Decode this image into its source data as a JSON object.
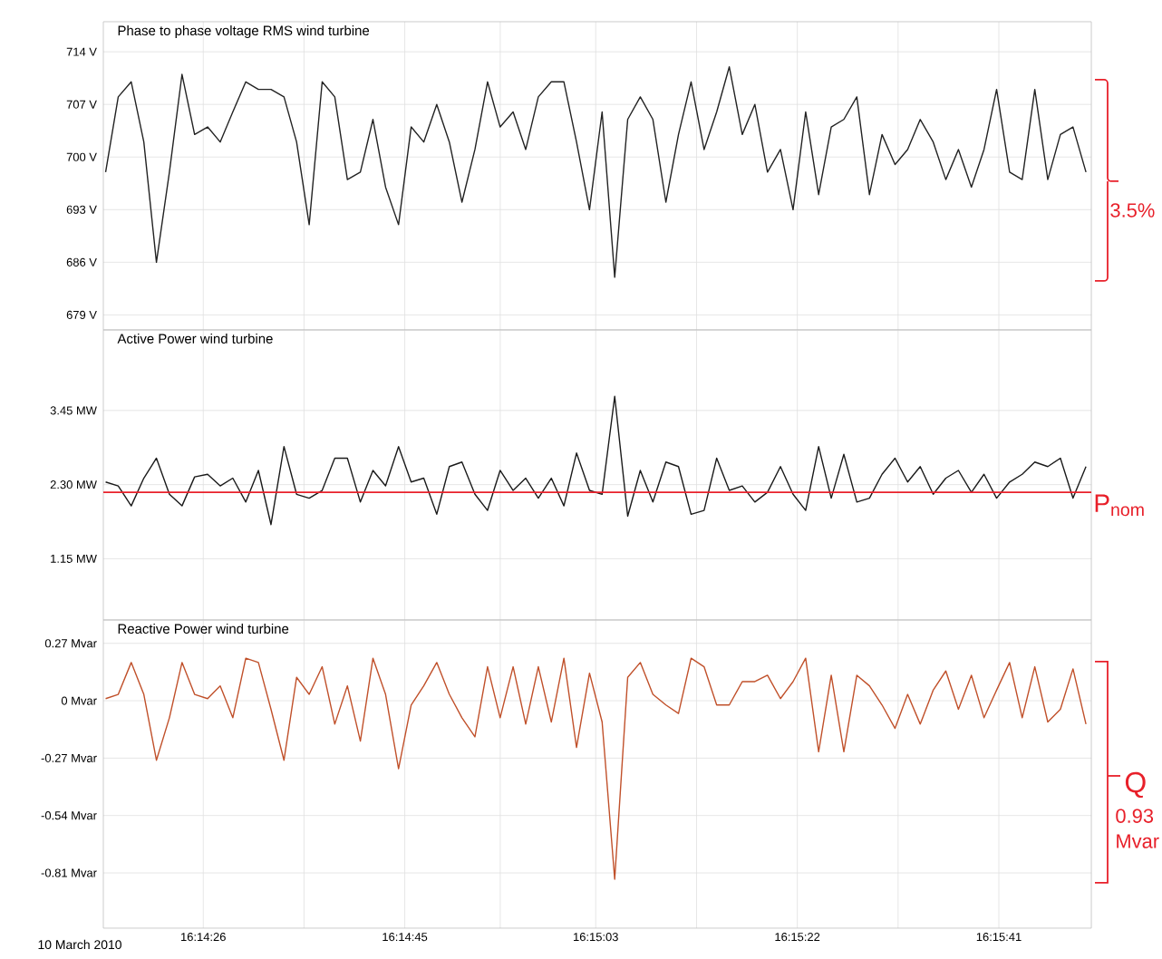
{
  "chart_data": [
    {
      "type": "line",
      "title": "Phase to phase voltage RMS wind turbine",
      "marker": "none",
      "grid": true,
      "tick_labels": "y",
      "xlim": [
        16.23794,
        16.26381
      ],
      "xticks": [
        {
          "value": 16.240556,
          "label": null
        },
        {
          "value": 16.243194,
          "label": null
        },
        {
          "value": 16.245833,
          "label": null
        },
        {
          "value": 16.248333,
          "label": null
        },
        {
          "value": 16.250833,
          "label": null
        },
        {
          "value": 16.253472,
          "label": null
        },
        {
          "value": 16.256111,
          "label": null
        },
        {
          "value": 16.25875,
          "label": null
        },
        {
          "value": 16.261389,
          "label": null
        }
      ],
      "ylim": [
        677,
        718
      ],
      "yticks": [
        {
          "value": 679,
          "label": "679 V"
        },
        {
          "value": 686,
          "label": "686 V"
        },
        {
          "value": 693,
          "label": "693 V"
        },
        {
          "value": 700,
          "label": "700 V"
        },
        {
          "value": 707,
          "label": "707 V"
        },
        {
          "value": 714,
          "label": "714 V"
        }
      ],
      "annotations": [
        "3.5%"
      ],
      "series": [
        {
          "color": "#222222",
          "x": [
            16.238,
            16.23833,
            16.23867,
            16.239,
            16.23933,
            16.23967,
            16.24,
            16.24033,
            16.24067,
            16.241,
            16.24133,
            16.24167,
            16.242,
            16.24233,
            16.24267,
            16.243,
            16.24333,
            16.24367,
            16.244,
            16.24433,
            16.24467,
            16.245,
            16.24533,
            16.24567,
            16.246,
            16.24633,
            16.24667,
            16.247,
            16.24733,
            16.24767,
            16.248,
            16.24833,
            16.24867,
            16.249,
            16.24933,
            16.24967,
            16.25,
            16.25033,
            16.25067,
            16.251,
            16.25133,
            16.25167,
            16.252,
            16.25233,
            16.25267,
            16.253,
            16.25333,
            16.25367,
            16.254,
            16.25433,
            16.25467,
            16.255,
            16.25533,
            16.25567,
            16.256,
            16.25633,
            16.25667,
            16.257,
            16.25733,
            16.25767,
            16.258,
            16.25833,
            16.25867,
            16.259,
            16.25933,
            16.25967,
            16.26,
            16.26033,
            16.26067,
            16.261,
            16.26133,
            16.26167,
            16.262,
            16.26233,
            16.26267,
            16.263,
            16.26333,
            16.26367
          ],
          "values": [
            698,
            708,
            710,
            702,
            686,
            698,
            711,
            703,
            704,
            702,
            706,
            710,
            709,
            709,
            708,
            702,
            691,
            710,
            708,
            697,
            698,
            705,
            696,
            691,
            704,
            702,
            707,
            702,
            694,
            701,
            710,
            704,
            706,
            701,
            708,
            710,
            710,
            702,
            693,
            706,
            684,
            705,
            708,
            705,
            694,
            703,
            710,
            701,
            706,
            712,
            703,
            707,
            698,
            701,
            693,
            706,
            695,
            704,
            705,
            708,
            695,
            703,
            699,
            701,
            705,
            702,
            697,
            701,
            696,
            701,
            709,
            698,
            697,
            709,
            697,
            703,
            704,
            698
          ]
        }
      ]
    },
    {
      "type": "line",
      "title": "Active Power wind turbine",
      "marker": "none",
      "grid": true,
      "tick_labels": "y",
      "xlim": [
        16.23794,
        16.26381
      ],
      "xticks": [
        {
          "value": 16.240556,
          "label": null
        },
        {
          "value": 16.243194,
          "label": null
        },
        {
          "value": 16.245833,
          "label": null
        },
        {
          "value": 16.248333,
          "label": null
        },
        {
          "value": 16.250833,
          "label": null
        },
        {
          "value": 16.253472,
          "label": null
        },
        {
          "value": 16.256111,
          "label": null
        },
        {
          "value": 16.25875,
          "label": null
        },
        {
          "value": 16.261389,
          "label": null
        }
      ],
      "ylim": [
        0.2,
        4.7
      ],
      "yticks": [
        {
          "value": 1.15,
          "label": "1.15 MW"
        },
        {
          "value": 2.3,
          "label": "2.30 MW"
        },
        {
          "value": 3.45,
          "label": "3.45 MW"
        }
      ],
      "ref_lines": [
        {
          "axis": "y",
          "value": 2.18,
          "label": "P$_{nom}$",
          "color": "#e8202a"
        }
      ],
      "series": [
        {
          "color": "#1a1a1a",
          "x": [
            16.238,
            16.23833,
            16.23867,
            16.239,
            16.23933,
            16.23967,
            16.24,
            16.24033,
            16.24067,
            16.241,
            16.24133,
            16.24167,
            16.242,
            16.24233,
            16.24267,
            16.243,
            16.24333,
            16.24367,
            16.244,
            16.24433,
            16.24467,
            16.245,
            16.24533,
            16.24567,
            16.246,
            16.24633,
            16.24667,
            16.247,
            16.24733,
            16.24767,
            16.248,
            16.24833,
            16.24867,
            16.249,
            16.24933,
            16.24967,
            16.25,
            16.25033,
            16.25067,
            16.251,
            16.25133,
            16.25167,
            16.252,
            16.25233,
            16.25267,
            16.253,
            16.25333,
            16.25367,
            16.254,
            16.25433,
            16.25467,
            16.255,
            16.25533,
            16.25567,
            16.256,
            16.25633,
            16.25667,
            16.257,
            16.25733,
            16.25767,
            16.258,
            16.25833,
            16.25867,
            16.259,
            16.25933,
            16.25967,
            16.26,
            16.26033,
            16.26067,
            16.261,
            16.26133,
            16.26167,
            16.262,
            16.26233,
            16.26267,
            16.263,
            16.26333,
            16.26367
          ],
          "values": [
            2.34,
            2.28,
            1.97,
            2.4,
            2.71,
            2.15,
            1.97,
            2.42,
            2.46,
            2.28,
            2.4,
            2.03,
            2.52,
            1.68,
            2.89,
            2.15,
            2.09,
            2.21,
            2.71,
            2.71,
            2.03,
            2.52,
            2.28,
            2.89,
            2.34,
            2.4,
            1.84,
            2.58,
            2.65,
            2.15,
            1.9,
            2.52,
            2.21,
            2.4,
            2.09,
            2.4,
            1.97,
            2.79,
            2.21,
            2.15,
            3.67,
            1.81,
            2.52,
            2.03,
            2.65,
            2.58,
            1.84,
            1.9,
            2.71,
            2.21,
            2.28,
            2.03,
            2.18,
            2.58,
            2.15,
            1.9,
            2.89,
            2.09,
            2.77,
            2.03,
            2.09,
            2.46,
            2.71,
            2.34,
            2.58,
            2.15,
            2.4,
            2.52,
            2.18,
            2.46,
            2.09,
            2.34,
            2.46,
            2.65,
            2.58,
            2.71,
            2.09,
            2.58
          ]
        }
      ]
    },
    {
      "type": "line",
      "title": "Reactive Power wind turbine",
      "marker": "none",
      "grid": true,
      "xlim": [
        16.23794,
        16.26381
      ],
      "xticks": [
        {
          "value": 16.240556,
          "label": "16:14:26"
        },
        {
          "value": 16.243194,
          "label": null
        },
        {
          "value": 16.245833,
          "label": "16:14:45"
        },
        {
          "value": 16.248333,
          "label": null
        },
        {
          "value": 16.250833,
          "label": "16:15:03"
        },
        {
          "value": 16.253472,
          "label": null
        },
        {
          "value": 16.256111,
          "label": "16:15:22"
        },
        {
          "value": 16.25875,
          "label": null
        },
        {
          "value": 16.261389,
          "label": "16:15:41"
        }
      ],
      "ylim": [
        -1.07,
        0.38
      ],
      "yticks": [
        {
          "value": -0.81,
          "label": "-0.81 Mvar"
        },
        {
          "value": -0.54,
          "label": "-0.54 Mvar"
        },
        {
          "value": -0.27,
          "label": "-0.27 Mvar"
        },
        {
          "value": 0,
          "label": "0 Mvar"
        },
        {
          "value": 0.27,
          "label": "0.27 Mvar"
        }
      ],
      "annotations": [
        "Q",
        "0.93 Mvar",
        "10 March 2010"
      ],
      "series": [
        {
          "color": "#c0502a",
          "x": [
            16.238,
            16.23833,
            16.23867,
            16.239,
            16.23933,
            16.23967,
            16.24,
            16.24033,
            16.24067,
            16.241,
            16.24133,
            16.24167,
            16.242,
            16.24233,
            16.24267,
            16.243,
            16.24333,
            16.24367,
            16.244,
            16.24433,
            16.24467,
            16.245,
            16.24533,
            16.24567,
            16.246,
            16.24633,
            16.24667,
            16.247,
            16.24733,
            16.24767,
            16.248,
            16.24833,
            16.24867,
            16.249,
            16.24933,
            16.24967,
            16.25,
            16.25033,
            16.25067,
            16.251,
            16.25133,
            16.25167,
            16.252,
            16.25233,
            16.25267,
            16.253,
            16.25333,
            16.25367,
            16.254,
            16.25433,
            16.25467,
            16.255,
            16.25533,
            16.25567,
            16.256,
            16.25633,
            16.25667,
            16.257,
            16.25733,
            16.25767,
            16.258,
            16.25833,
            16.25867,
            16.259,
            16.25933,
            16.25967,
            16.26,
            16.26033,
            16.26067,
            16.261,
            16.26133,
            16.26167,
            16.262,
            16.26233,
            16.26267,
            16.263,
            16.26333,
            16.26367
          ],
          "values": [
            0.01,
            0.03,
            0.18,
            0.03,
            -0.28,
            -0.08,
            0.18,
            0.03,
            0.01,
            0.07,
            -0.08,
            0.2,
            0.18,
            -0.04,
            -0.28,
            0.11,
            0.03,
            0.16,
            -0.11,
            0.07,
            -0.19,
            0.2,
            0.03,
            -0.32,
            -0.02,
            0.07,
            0.18,
            0.03,
            -0.08,
            -0.17,
            0.16,
            -0.08,
            0.16,
            -0.11,
            0.16,
            -0.1,
            0.2,
            -0.22,
            0.13,
            -0.1,
            -0.84,
            0.11,
            0.18,
            0.03,
            -0.02,
            -0.06,
            0.2,
            0.16,
            -0.02,
            -0.02,
            0.09,
            0.09,
            0.12,
            0.01,
            0.09,
            0.2,
            -0.24,
            0.12,
            -0.24,
            0.12,
            0.07,
            -0.02,
            -0.13,
            0.03,
            -0.11,
            0.05,
            0.14,
            -0.04,
            0.12,
            -0.08,
            0.05,
            0.18,
            -0.08,
            0.16,
            -0.1,
            -0.04,
            0.15,
            -0.11
          ]
        }
      ]
    }
  ]
}
